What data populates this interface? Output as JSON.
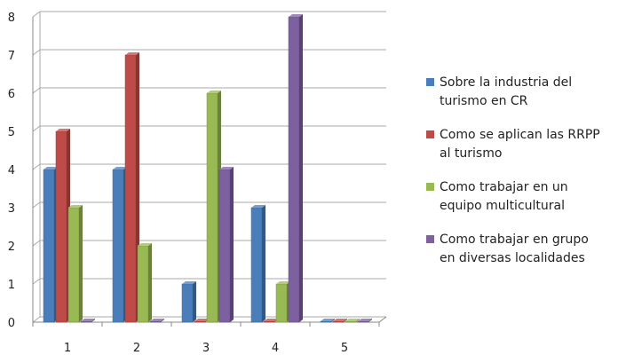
{
  "chart_data": {
    "type": "bar",
    "title": "",
    "xlabel": "",
    "ylabel": "",
    "categories": [
      "1",
      "2",
      "3",
      "4",
      "5"
    ],
    "ylim": [
      0,
      8
    ],
    "yticks": [
      "0",
      "1",
      "2",
      "3",
      "4",
      "5",
      "6",
      "7",
      "8"
    ],
    "grid": true,
    "legend_position": "right",
    "series": [
      {
        "name": "Sobre la industria del turismo en CR",
        "legend_lines": [
          "Sobre la industria del",
          "turismo en CR"
        ],
        "color": "#4a7ebb",
        "values": [
          4,
          4,
          1,
          3,
          0
        ]
      },
      {
        "name": "Como se aplican las RRPP al turismo",
        "legend_lines": [
          "Como se aplican las RRPP",
          "al turismo"
        ],
        "color": "#be4b48",
        "values": [
          5,
          7,
          0,
          0,
          0
        ]
      },
      {
        "name": "Como trabajar en un equipo multicultural",
        "legend_lines": [
          "Como trabajar en un",
          "equipo multicultural"
        ],
        "color": "#98b954",
        "values": [
          3,
          2,
          6,
          1,
          0
        ]
      },
      {
        "name": "Como trabajar en grupo en diversas localidades",
        "legend_lines": [
          "Como trabajar en grupo",
          "en diversas localidades"
        ],
        "color": "#7d60a0",
        "values": [
          0,
          0,
          4,
          8,
          0
        ]
      }
    ]
  }
}
